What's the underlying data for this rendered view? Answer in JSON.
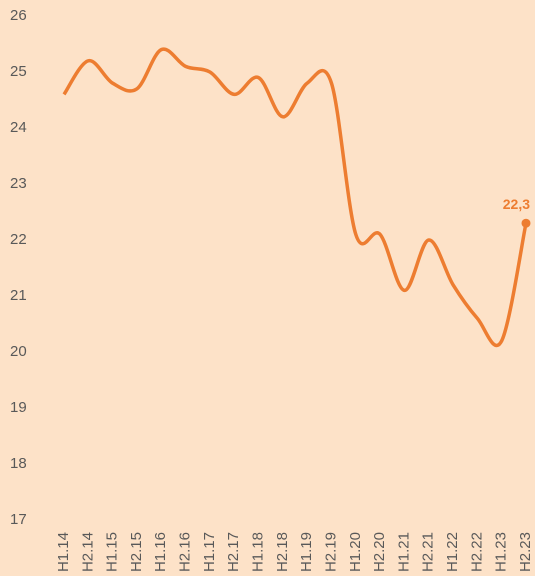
{
  "chart_data": {
    "type": "line",
    "categories": [
      "H1.14",
      "H2.14",
      "H1.15",
      "H2.15",
      "H1.16",
      "H2.16",
      "H1.17",
      "H2.17",
      "H1.18",
      "H2.18",
      "H1.19",
      "H2.19",
      "H1.20",
      "H2.20",
      "H1.21",
      "H2.21",
      "H1.22",
      "H2.22",
      "H1.23",
      "H2.23"
    ],
    "series": [
      {
        "color": "#ed7d31",
        "values": [
          24.6,
          25.2,
          24.8,
          24.7,
          25.4,
          25.1,
          25.0,
          24.6,
          24.9,
          24.2,
          24.8,
          24.8,
          22.1,
          22.1,
          21.1,
          22.0,
          21.2,
          20.6,
          20.2,
          22.3
        ],
        "value_labels": [
          null,
          null,
          null,
          null,
          null,
          null,
          null,
          null,
          null,
          null,
          null,
          null,
          null,
          null,
          null,
          null,
          null,
          null,
          null,
          "22,3"
        ]
      }
    ],
    "ylim": [
      17,
      26
    ],
    "yticks": [
      17,
      18,
      19,
      20,
      21,
      22,
      23,
      24,
      25,
      26
    ],
    "grid": false
  }
}
